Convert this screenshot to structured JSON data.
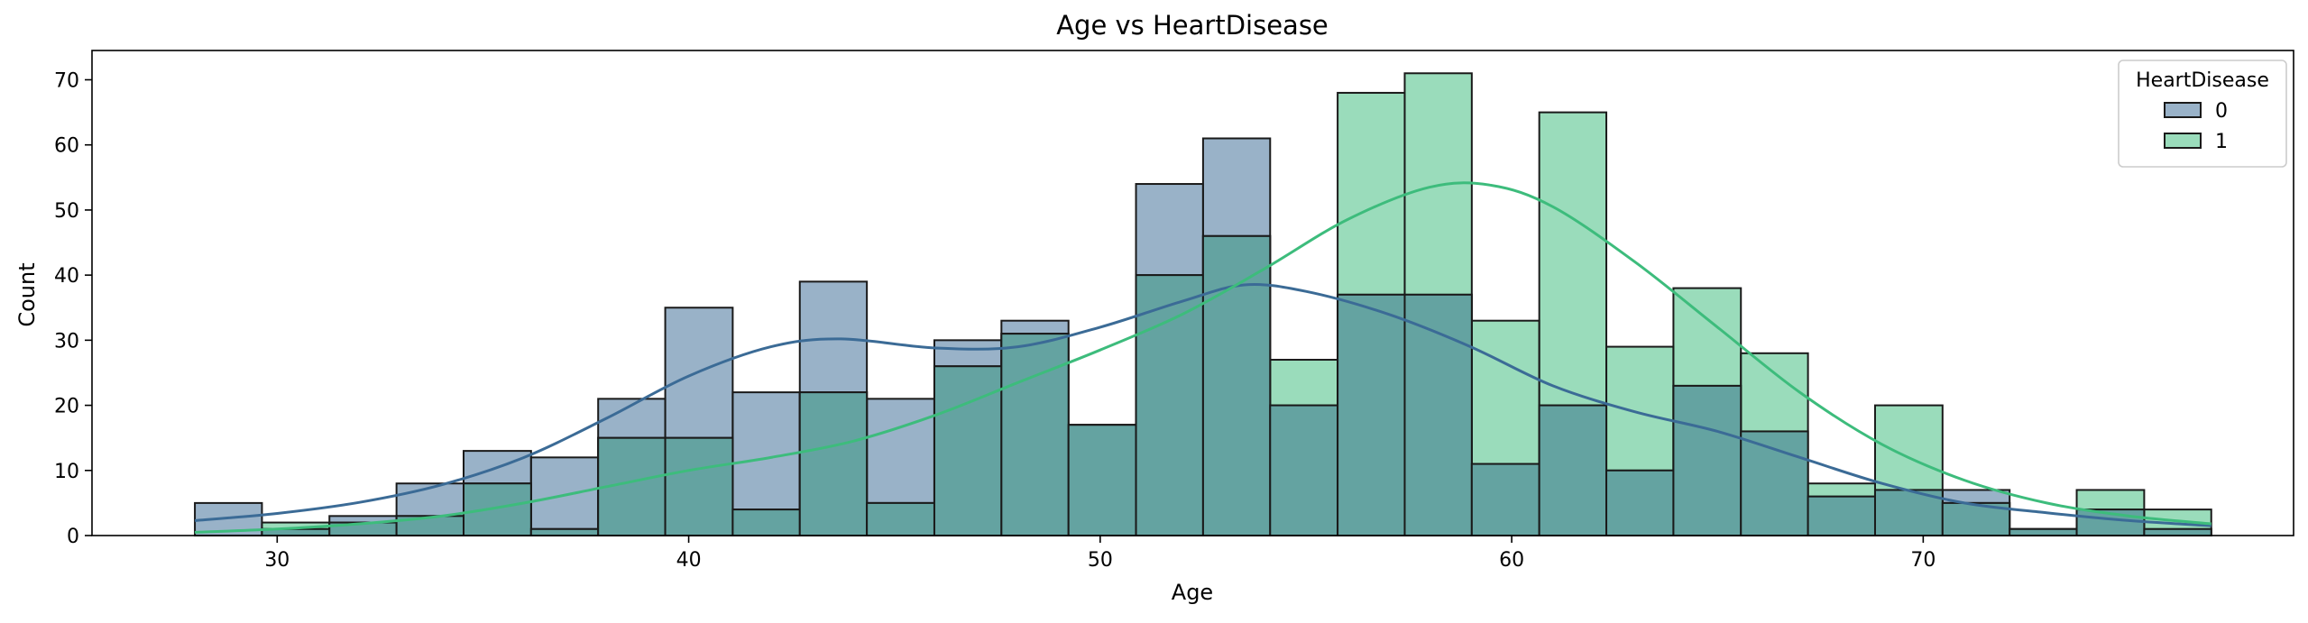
{
  "chart_data": {
    "type": "bar",
    "title": "Age vs HeartDisease",
    "xlabel": "Age",
    "ylabel": "Count",
    "xlim": [
      25.5,
      79
    ],
    "ylim": [
      0,
      74.5
    ],
    "xticks": [
      30,
      40,
      50,
      60,
      70
    ],
    "yticks": [
      0,
      10,
      20,
      30,
      40,
      50,
      60,
      70
    ],
    "bin_edges": [
      28,
      29.63,
      31.27,
      32.9,
      34.53,
      36.17,
      37.8,
      39.43,
      41.07,
      42.7,
      44.33,
      45.97,
      47.6,
      49.23,
      50.87,
      52.5,
      54.13,
      55.77,
      57.4,
      59.03,
      60.67,
      62.3,
      63.93,
      65.57,
      67.2,
      68.83,
      70.47,
      72.1,
      73.73,
      75.37,
      77
    ],
    "legend": {
      "title": "HeartDisease",
      "position": "upper right"
    },
    "colors": {
      "0": "#3b6b96",
      "1": "#3dbc7c",
      "overlap": "#64a3a1",
      "edge": "#1a1a1a"
    },
    "series": [
      {
        "name": "0",
        "values": [
          5,
          1,
          3,
          8,
          13,
          12,
          21,
          35,
          22,
          39,
          21,
          30,
          33,
          17,
          54,
          61,
          20,
          37,
          37,
          11,
          20,
          10,
          23,
          16,
          6,
          7,
          7,
          1,
          4,
          1
        ],
        "kde": [
          [
            28,
            2.3
          ],
          [
            30,
            3.4
          ],
          [
            32,
            5.1
          ],
          [
            34,
            7.8
          ],
          [
            36,
            12
          ],
          [
            38,
            18
          ],
          [
            40,
            24.5
          ],
          [
            42,
            29
          ],
          [
            43.7,
            30.2
          ],
          [
            46,
            28.8
          ],
          [
            48,
            29
          ],
          [
            50,
            32
          ],
          [
            52,
            36
          ],
          [
            53.5,
            38.5
          ],
          [
            55,
            37.5
          ],
          [
            57,
            34
          ],
          [
            59,
            29
          ],
          [
            61,
            23
          ],
          [
            63,
            19
          ],
          [
            65,
            16
          ],
          [
            67,
            12
          ],
          [
            69,
            8
          ],
          [
            71,
            5
          ],
          [
            73,
            3.5
          ],
          [
            75,
            2.3
          ],
          [
            77,
            1.5
          ]
        ]
      },
      {
        "name": "1",
        "values": [
          0,
          2,
          2,
          3,
          8,
          1,
          15,
          15,
          4,
          22,
          5,
          26,
          31,
          17,
          40,
          46,
          27,
          68,
          71,
          33,
          65,
          29,
          38,
          28,
          8,
          20,
          5,
          1,
          7,
          4
        ],
        "kde": [
          [
            28,
            0.5
          ],
          [
            30,
            1
          ],
          [
            32,
            1.8
          ],
          [
            34,
            3
          ],
          [
            36,
            5
          ],
          [
            38,
            7.5
          ],
          [
            40,
            10
          ],
          [
            42,
            12
          ],
          [
            44,
            14.5
          ],
          [
            46,
            18.5
          ],
          [
            48,
            23.5
          ],
          [
            50,
            28.5
          ],
          [
            52,
            34
          ],
          [
            54,
            41
          ],
          [
            56,
            48.5
          ],
          [
            58,
            53.5
          ],
          [
            59.5,
            53.8
          ],
          [
            61,
            50.5
          ],
          [
            63,
            42
          ],
          [
            65,
            32
          ],
          [
            67,
            22
          ],
          [
            69,
            14
          ],
          [
            71,
            8.5
          ],
          [
            73,
            5
          ],
          [
            75,
            3
          ],
          [
            77,
            1.8
          ]
        ]
      }
    ]
  }
}
